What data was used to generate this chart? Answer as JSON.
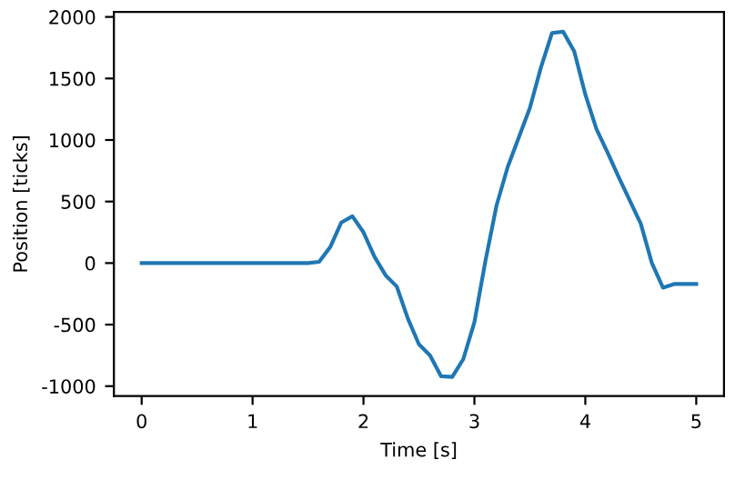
{
  "chart_data": {
    "type": "line",
    "xlabel": "Time [s]",
    "ylabel": "Position [ticks]",
    "x": [
      0,
      0.1,
      0.2,
      0.3,
      0.4,
      0.5,
      0.6,
      0.7,
      0.8,
      0.9,
      1.0,
      1.1,
      1.2,
      1.3,
      1.4,
      1.5,
      1.6,
      1.7,
      1.8,
      1.9,
      2.0,
      2.1,
      2.2,
      2.3,
      2.4,
      2.5,
      2.6,
      2.7,
      2.8,
      2.9,
      3.0,
      3.1,
      3.2,
      3.3,
      3.4,
      3.5,
      3.6,
      3.7,
      3.8,
      3.9,
      4.0,
      4.1,
      4.2,
      4.3,
      4.4,
      4.5,
      4.6,
      4.7,
      4.8,
      4.9,
      5.0
    ],
    "series": [
      {
        "color": "#1f77b4",
        "values": [
          0,
          0,
          0,
          0,
          0,
          0,
          0,
          0,
          0,
          0,
          0,
          0,
          0,
          0,
          0,
          0,
          10,
          130,
          330,
          380,
          250,
          50,
          -100,
          -190,
          -450,
          -660,
          -750,
          -920,
          -925,
          -780,
          -480,
          20,
          470,
          780,
          1020,
          1260,
          1590,
          1870,
          1880,
          1720,
          1370,
          1090,
          900,
          700,
          510,
          320,
          0,
          -200,
          -170,
          -170,
          -170
        ]
      }
    ],
    "xlim": [
      -0.25,
      5.25
    ],
    "ylim": [
      -1080,
      2040
    ],
    "xticks": [
      0,
      1,
      2,
      3,
      4,
      5
    ],
    "yticks": [
      -1000,
      -500,
      0,
      500,
      1000,
      1500,
      2000
    ],
    "grid": false,
    "legend": false,
    "marker": "none",
    "line_style": "solid"
  }
}
